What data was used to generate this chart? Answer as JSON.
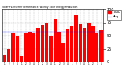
{
  "title": "Solar PV/Inverter Performance: Weekly Solar Energy Production",
  "bar_color": "#ff0000",
  "avg_line_color": "#0000ff",
  "background_color": "#ffffff",
  "plot_bg_color": "#ffffff",
  "grid_color": "#888888",
  "values": [
    12,
    25,
    55,
    50,
    10,
    55,
    58,
    54,
    65,
    70,
    75,
    48,
    82,
    58,
    35,
    62,
    68,
    90,
    72,
    64,
    75,
    68,
    54,
    60
  ],
  "avg_value": 57,
  "ylim": [
    0,
    100
  ],
  "yticks": [
    0,
    25,
    50,
    75,
    100
  ],
  "legend_label_bar": "kWh",
  "legend_label_line": "Avg"
}
